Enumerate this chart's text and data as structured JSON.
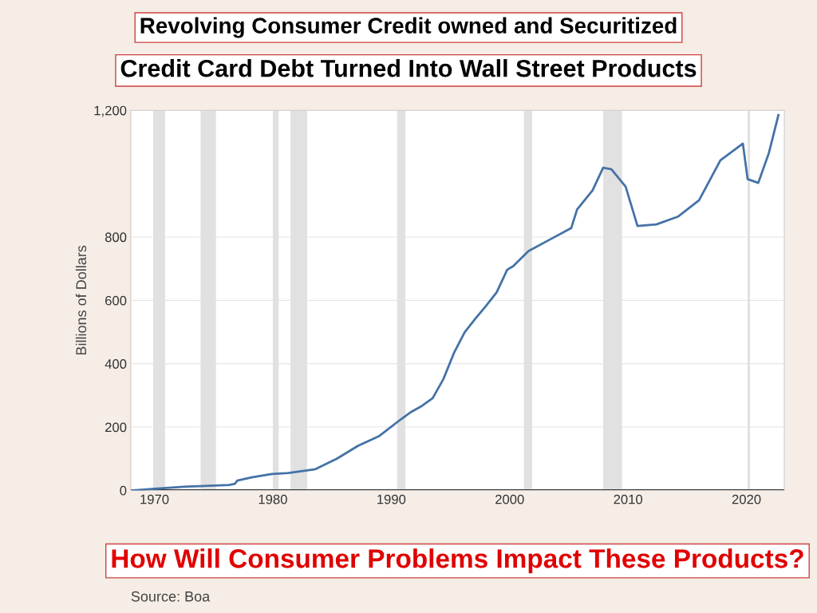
{
  "chart_data": {
    "type": "line",
    "title": "Revolving Consumer Credit owned and Securitized",
    "subtitle": "Credit Card Debt Turned Into Wall Street Products",
    "ylabel": "Billions of Dollars",
    "annotations": [
      "How Will Consumer Problems Impact These Products?",
      "Source: Boa"
    ],
    "series": [
      {
        "color": "#4572a7",
        "x": [
          1968.2,
          1970,
          1972.7,
          1976.3,
          1976.8,
          1977,
          1978.2,
          1979.9,
          1981.3,
          1983.6,
          1985.4,
          1987.2,
          1989,
          1990.8,
          1991.7,
          1992.6,
          1993.5,
          1994.4,
          1995.3,
          1996.2,
          1997.1,
          1998,
          1998.9,
          1999.8,
          2000.3,
          2001.6,
          2003.4,
          2005.2,
          2005.7,
          2007,
          2007.9,
          2008.6,
          2009.8,
          2010.8,
          2012.4,
          2014.2,
          2016,
          2017.8,
          2019.7,
          2020.1,
          2021,
          2021.9,
          2022.7
        ],
        "values": [
          0,
          5,
          12,
          17,
          21,
          31,
          41,
          52,
          55,
          67,
          100,
          141,
          172,
          224,
          248,
          267,
          291,
          351,
          434,
          499,
          542,
          582,
          625,
          697,
          708,
          756,
          792,
          828,
          887,
          947,
          1019,
          1014,
          959,
          835,
          840,
          864,
          916,
          1042,
          1095,
          983,
          971,
          1066,
          1185
        ]
      }
    ],
    "bands": [
      {
        "axis": "x",
        "from": 1969.9,
        "to": 1970.9,
        "color": "#e1e1e1"
      },
      {
        "axis": "x",
        "from": 1973.9,
        "to": 1975.2,
        "color": "#e1e1e1"
      },
      {
        "axis": "x",
        "from": 1980.0,
        "to": 1980.5,
        "color": "#e1e1e1"
      },
      {
        "axis": "x",
        "from": 1981.5,
        "to": 1982.9,
        "color": "#e1e1e1"
      },
      {
        "axis": "x",
        "from": 1990.5,
        "to": 1991.2,
        "color": "#e1e1e1"
      },
      {
        "axis": "x",
        "from": 2001.2,
        "to": 2001.9,
        "color": "#e1e1e1"
      },
      {
        "axis": "x",
        "from": 2007.9,
        "to": 2009.5,
        "color": "#e1e1e1"
      },
      {
        "axis": "x",
        "from": 2020.1,
        "to": 2020.3,
        "color": "#e1e1e1"
      }
    ],
    "xlim": [
      1968,
      2023.2
    ],
    "xticks": [
      1970,
      1980,
      1990,
      2000,
      2010,
      2020
    ],
    "ylim": [
      0,
      1200
    ],
    "yticks": [
      0,
      200,
      400,
      600,
      800,
      {
        "value": 1200,
        "label": "1,200"
      }
    ],
    "grid": "y",
    "legend": false
  }
}
